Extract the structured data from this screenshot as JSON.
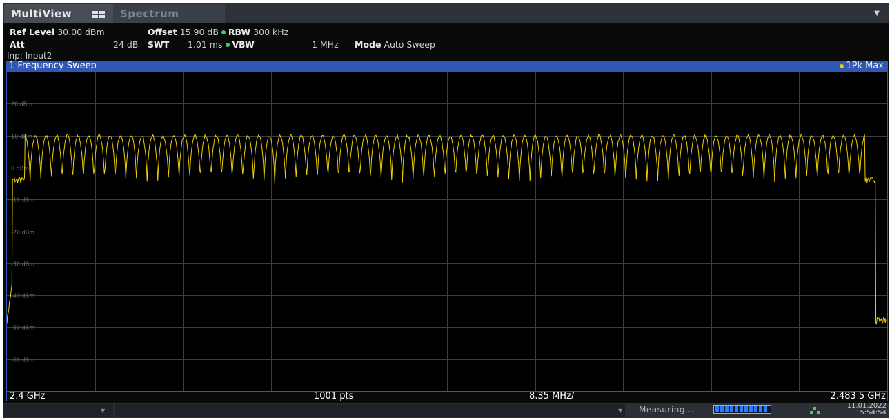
{
  "tabs": [
    {
      "label": "MultiView",
      "active": true,
      "icon": "multiview-grid-icon"
    },
    {
      "label": "Spectrum",
      "active": false
    }
  ],
  "settings": {
    "ref_level_label": "Ref Level",
    "ref_level_value": "30.00 dBm",
    "offset_label": "Offset",
    "offset_value": "15.90 dB",
    "rbw_label": "RBW",
    "rbw_value": "300 kHz",
    "att_label": "Att",
    "att_value": "24 dB",
    "swt_label": "SWT",
    "swt_value": "1.01 ms",
    "vbw_label": "VBW",
    "vbw_value": "1 MHz",
    "mode_label": "Mode",
    "mode_value": "Auto Sweep",
    "input": "Inp: Input2"
  },
  "window": {
    "title": "1 Frequency Sweep",
    "trace_label": "1Pk Max",
    "trace_color": "#f0d000"
  },
  "chart_data": {
    "type": "line",
    "y_tick_labels": [
      "20 dBm",
      "10 dBm",
      "0 dBm",
      "-10 dBm",
      "-20 dBm",
      "-30 dBm",
      "-40 dBm",
      "-50 dBm",
      "-60 dBm"
    ],
    "ylim": [
      -70,
      30
    ],
    "xlim_ghz": [
      2.4,
      2.4835
    ],
    "x_divisions": 10,
    "points": 1001,
    "series": [
      {
        "trace": "1Pk Max",
        "color": "#f0d000",
        "band_start_ghz": 2.4017,
        "band_end_ghz": 2.4814,
        "channel_count": 79,
        "peak_dbm": 10,
        "trough_dbm": -5,
        "noise_floor_dbm": -49
      }
    ],
    "grid": true
  },
  "axis": {
    "start": "2.4 GHz",
    "points": "1001 pts",
    "span_per_div": "8.35 MHz/",
    "stop": "2.483 5 GHz"
  },
  "status": {
    "measuring": "Measuring...",
    "date": "11.01.2022",
    "time": "15:54:54"
  }
}
